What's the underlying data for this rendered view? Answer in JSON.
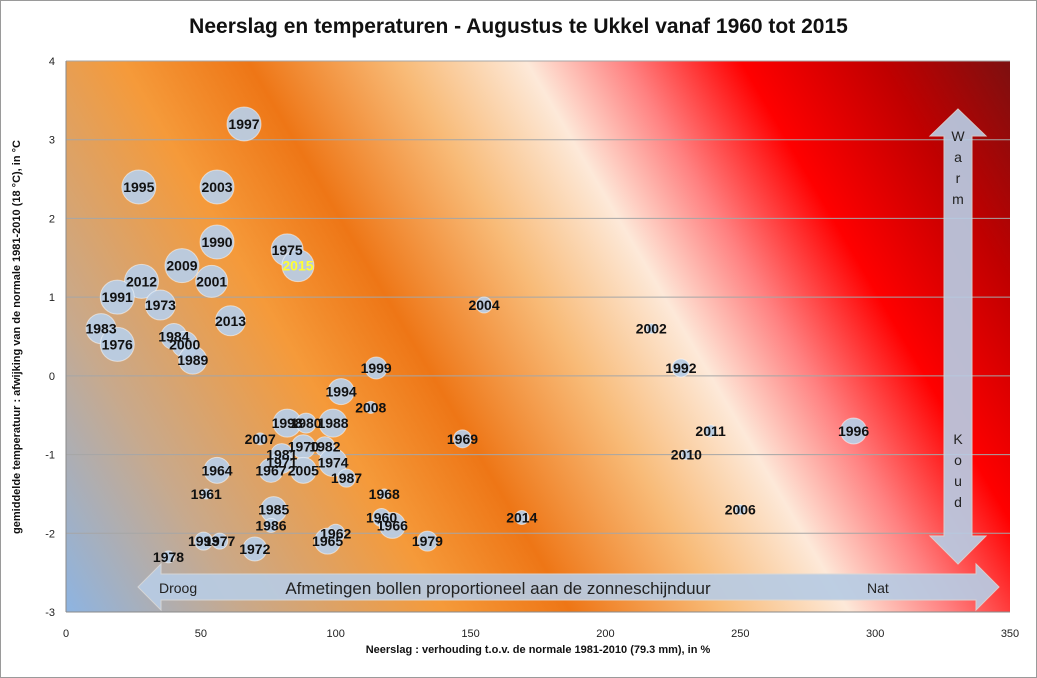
{
  "chart_data": {
    "type": "bubble",
    "title": "Neerslag en temperaturen - Augustus te Ukkel vanaf 1960 tot 2015",
    "xlabel": "Neerslag : verhouding t.o.v. de normale 1981-2010 (79.3 mm), in %",
    "ylabel": "gemiddelde temperatuur : afwijking van de normale 1981-2010 (18 °C), in °C",
    "xlim": [
      0,
      350
    ],
    "ylim": [
      -3,
      4
    ],
    "x_ticks": [
      0,
      50,
      100,
      150,
      200,
      250,
      300,
      350
    ],
    "y_ticks": [
      -3,
      -2,
      -1,
      0,
      1,
      2,
      3,
      4
    ],
    "grid": "horizontal",
    "highlight_year": "2015",
    "highlight_color": "#ffff33",
    "bubble_color": "#b8cce4",
    "points": [
      {
        "label": "1997",
        "x": 66,
        "y": 3.2,
        "r": 17
      },
      {
        "label": "1995",
        "x": 27,
        "y": 2.4,
        "r": 17
      },
      {
        "label": "2003",
        "x": 56,
        "y": 2.4,
        "r": 17
      },
      {
        "label": "1990",
        "x": 56,
        "y": 1.7,
        "r": 17
      },
      {
        "label": "1975",
        "x": 82,
        "y": 1.6,
        "r": 16
      },
      {
        "label": "2015",
        "x": 86,
        "y": 1.4,
        "r": 16
      },
      {
        "label": "2009",
        "x": 43,
        "y": 1.4,
        "r": 17
      },
      {
        "label": "2012",
        "x": 28,
        "y": 1.2,
        "r": 17
      },
      {
        "label": "2001",
        "x": 54,
        "y": 1.2,
        "r": 16
      },
      {
        "label": "1991",
        "x": 19,
        "y": 1.0,
        "r": 17
      },
      {
        "label": "1973",
        "x": 35,
        "y": 0.9,
        "r": 15
      },
      {
        "label": "2004",
        "x": 155,
        "y": 0.9,
        "r": 8
      },
      {
        "label": "2013",
        "x": 61,
        "y": 0.7,
        "r": 15
      },
      {
        "label": "1983",
        "x": 13,
        "y": 0.6,
        "r": 15
      },
      {
        "label": "2002",
        "x": 217,
        "y": 0.6,
        "r": 5
      },
      {
        "label": "1984",
        "x": 40,
        "y": 0.5,
        "r": 13
      },
      {
        "label": "1976",
        "x": 19,
        "y": 0.4,
        "r": 17
      },
      {
        "label": "2000",
        "x": 44,
        "y": 0.4,
        "r": 13
      },
      {
        "label": "1989",
        "x": 47,
        "y": 0.2,
        "r": 14
      },
      {
        "label": "1999",
        "x": 115,
        "y": 0.1,
        "r": 11
      },
      {
        "label": "1992",
        "x": 228,
        "y": 0.1,
        "r": 9
      },
      {
        "label": "1994",
        "x": 102,
        "y": -0.2,
        "r": 13
      },
      {
        "label": "2008",
        "x": 113,
        "y": -0.4,
        "r": 6
      },
      {
        "label": "1998",
        "x": 82,
        "y": -0.6,
        "r": 14
      },
      {
        "label": "1980",
        "x": 89,
        "y": -0.6,
        "r": 10
      },
      {
        "label": "1988",
        "x": 99,
        "y": -0.6,
        "r": 14
      },
      {
        "label": "2011",
        "x": 239,
        "y": -0.7,
        "r": 6
      },
      {
        "label": "1996",
        "x": 292,
        "y": -0.7,
        "r": 13
      },
      {
        "label": "2007",
        "x": 72,
        "y": -0.8,
        "r": 6
      },
      {
        "label": "1969",
        "x": 147,
        "y": -0.8,
        "r": 9
      },
      {
        "label": "1970",
        "x": 88,
        "y": -0.9,
        "r": 12
      },
      {
        "label": "1982",
        "x": 96,
        "y": -0.9,
        "r": 10
      },
      {
        "label": "1981",
        "x": 80,
        "y": -1.0,
        "r": 11
      },
      {
        "label": "1971",
        "x": 80,
        "y": -1.1,
        "r": 11
      },
      {
        "label": "2010",
        "x": 230,
        "y": -1.0,
        "r": 5
      },
      {
        "label": "1974",
        "x": 99,
        "y": -1.1,
        "r": 14
      },
      {
        "label": "1964",
        "x": 56,
        "y": -1.2,
        "r": 13
      },
      {
        "label": "1967",
        "x": 76,
        "y": -1.2,
        "r": 12
      },
      {
        "label": "2005",
        "x": 88,
        "y": -1.2,
        "r": 13
      },
      {
        "label": "1987",
        "x": 104,
        "y": -1.3,
        "r": 9
      },
      {
        "label": "1961",
        "x": 52,
        "y": -1.5,
        "r": 5
      },
      {
        "label": "1968",
        "x": 118,
        "y": -1.5,
        "r": 5
      },
      {
        "label": "1985",
        "x": 77,
        "y": -1.7,
        "r": 13
      },
      {
        "label": "1960",
        "x": 117,
        "y": -1.8,
        "r": 9
      },
      {
        "label": "2014",
        "x": 169,
        "y": -1.8,
        "r": 7
      },
      {
        "label": "2006",
        "x": 250,
        "y": -1.7,
        "r": 5
      },
      {
        "label": "1986",
        "x": 76,
        "y": -1.9,
        "r": 7
      },
      {
        "label": "1966",
        "x": 121,
        "y": -1.9,
        "r": 13
      },
      {
        "label": "1962",
        "x": 100,
        "y": -2.0,
        "r": 9
      },
      {
        "label": "1993",
        "x": 51,
        "y": -2.1,
        "r": 9
      },
      {
        "label": "1977",
        "x": 57,
        "y": -2.1,
        "r": 8
      },
      {
        "label": "1965",
        "x": 97,
        "y": -2.1,
        "r": 13
      },
      {
        "label": "1979",
        "x": 134,
        "y": -2.1,
        "r": 10
      },
      {
        "label": "1972",
        "x": 70,
        "y": -2.2,
        "r": 12
      },
      {
        "label": "1978",
        "x": 38,
        "y": -2.3,
        "r": 6
      }
    ],
    "annotations": {
      "horizontal_arrow": {
        "left": "Droog",
        "center": "Afmetingen bollen proportioneel aan de zonneschijnduur",
        "right": "Nat"
      },
      "vertical_arrow": {
        "top": "Warm",
        "bottom": "Koud"
      }
    }
  }
}
